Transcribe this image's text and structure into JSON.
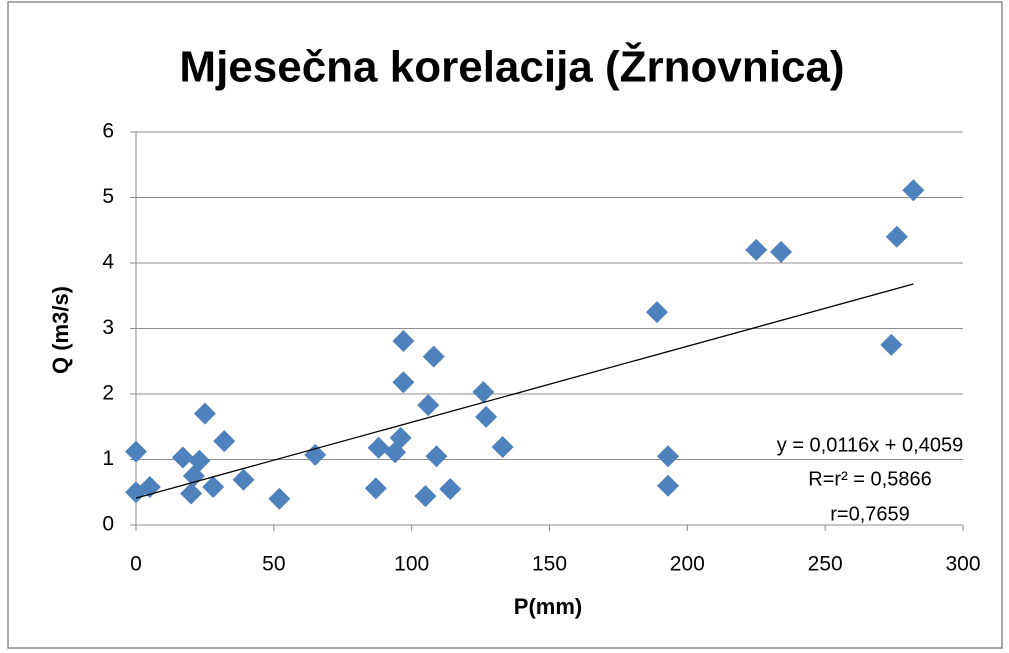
{
  "chart_data": {
    "type": "scatter",
    "title": "Mjesečna korelacija (Žrnovnica)",
    "x_label": "P(mm)",
    "y_label": "Q (m3/s)",
    "x": [
      0,
      0,
      5,
      17,
      20,
      21,
      23,
      25,
      28,
      32,
      39,
      52,
      65,
      87,
      88,
      94,
      96,
      97,
      97,
      108,
      106,
      109,
      105,
      114,
      126,
      127,
      133,
      189,
      193,
      193,
      225,
      234,
      274,
      276,
      282
    ],
    "values": [
      1.12,
      0.5,
      0.58,
      1.03,
      0.48,
      0.75,
      0.98,
      1.7,
      0.58,
      1.28,
      0.69,
      0.4,
      1.07,
      0.56,
      1.18,
      1.11,
      1.33,
      2.81,
      2.18,
      2.57,
      1.83,
      1.05,
      0.44,
      0.55,
      2.03,
      1.65,
      1.19,
      3.25,
      1.05,
      0.6,
      4.2,
      4.17,
      2.75,
      4.4,
      5.11
    ],
    "color": "#4f81bd",
    "trendline": {
      "x": [
        0,
        282
      ],
      "y": [
        0.41,
        3.68
      ],
      "color": "#000000"
    },
    "annotations": [
      "y = 0,0116x + 0,4059",
      "R=r² = 0,5866",
      "r=0,7659"
    ],
    "xlim": [
      0,
      300
    ],
    "ylim": [
      0,
      6
    ],
    "xticks": [
      0,
      50,
      100,
      150,
      200,
      250,
      300
    ],
    "yticks": [
      0,
      1,
      2,
      3,
      4,
      5,
      6
    ],
    "grid": true
  }
}
